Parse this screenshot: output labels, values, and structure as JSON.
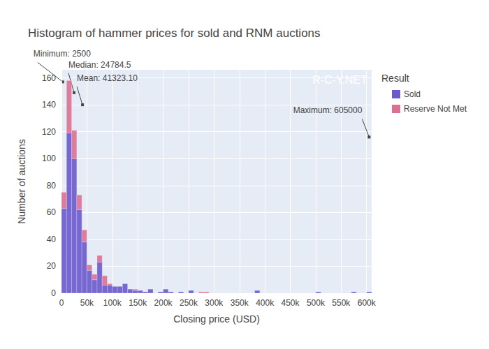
{
  "chart_data": {
    "type": "histogram",
    "title": "Histogram of hammer prices for sold and RNM auctions",
    "x_label": "Closing price (USD)",
    "y_label": "Number of auctions",
    "legend_title": "Result",
    "watermark": "R-C-Y.NET",
    "stacked": true,
    "grid": true,
    "legend": "right",
    "bins": [
      0,
      10000,
      20000,
      30000,
      40000,
      50000,
      60000,
      70000,
      80000,
      90000,
      100000,
      110000,
      120000,
      130000,
      140000,
      150000,
      160000,
      170000,
      180000,
      190000,
      200000,
      210000,
      220000,
      230000,
      240000,
      250000,
      260000,
      270000,
      280000,
      290000,
      300000,
      310000,
      320000,
      330000,
      340000,
      350000,
      360000,
      370000,
      380000,
      390000,
      400000,
      410000,
      420000,
      430000,
      440000,
      450000,
      460000,
      470000,
      480000,
      490000,
      500000,
      510000,
      520000,
      530000,
      540000,
      550000,
      560000,
      570000,
      580000,
      590000,
      600000,
      610000
    ],
    "series": [
      {
        "name": "Sold",
        "color": "#6a5acd",
        "values": [
          63,
          119,
          100,
          62,
          38,
          17,
          10,
          23,
          6,
          6,
          5,
          5,
          7,
          3,
          2,
          2,
          1,
          3,
          0,
          1,
          3,
          1,
          0,
          1,
          0,
          2,
          0,
          0,
          0,
          0,
          0,
          0,
          0,
          0,
          0,
          0,
          0,
          0,
          2,
          0,
          0,
          0,
          0,
          0,
          0,
          0,
          0,
          0,
          0,
          0,
          1,
          0,
          0,
          0,
          0,
          0,
          0,
          1,
          0,
          0,
          1
        ]
      },
      {
        "name": "Reserve Not Met",
        "color": "#db7093",
        "values": [
          12,
          39,
          21,
          11,
          9,
          4,
          4,
          5,
          7,
          1,
          0,
          0,
          0,
          0,
          1,
          0,
          0,
          0,
          0,
          0,
          0,
          0,
          0,
          0,
          0,
          0,
          0,
          1,
          1,
          0,
          0,
          0,
          0,
          0,
          0,
          0,
          0,
          0,
          0,
          0,
          0,
          0,
          0,
          0,
          0,
          0,
          0,
          0,
          0,
          0,
          0,
          0,
          0,
          0,
          0,
          0,
          0,
          0,
          0,
          0,
          0
        ]
      }
    ],
    "annotations": [
      {
        "x": 2500,
        "y": 157,
        "text": "Minimum: 2500"
      },
      {
        "x": 24784.5,
        "y": 149,
        "text": "Median: 24784.5"
      },
      {
        "x": 41323.1,
        "y": 140,
        "text": "Mean: 41323.10"
      },
      {
        "x": 605000,
        "y": 116,
        "text": "Maximum: 605000"
      }
    ],
    "xlim": [
      0,
      610000
    ],
    "xticks": [
      0,
      {
        "value": 50000,
        "label": "50k"
      },
      {
        "value": 100000,
        "label": "100k"
      },
      {
        "value": 150000,
        "label": "150k"
      },
      {
        "value": 200000,
        "label": "200k"
      },
      {
        "value": 250000,
        "label": "250k"
      },
      {
        "value": 300000,
        "label": "300k"
      },
      {
        "value": 350000,
        "label": "350k"
      },
      {
        "value": 400000,
        "label": "400k"
      },
      {
        "value": 450000,
        "label": "450k"
      },
      {
        "value": 500000,
        "label": "500k"
      },
      {
        "value": 550000,
        "label": "550k"
      },
      {
        "value": 600000,
        "label": "600k"
      }
    ],
    "ylim": [
      0,
      166
    ],
    "yticks": [
      0,
      20,
      40,
      60,
      80,
      100,
      120,
      140,
      160
    ]
  }
}
